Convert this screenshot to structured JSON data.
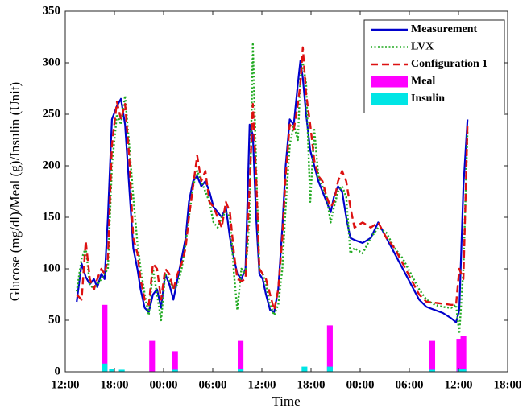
{
  "chart_data": {
    "type": "line",
    "xlabel": "Time",
    "ylabel": "Glucose (mg/dl)/Meal (g)/Insulin (Unit)",
    "xlim": [
      0,
      54
    ],
    "xticks": [
      {
        "value": 0,
        "label": "12:00"
      },
      {
        "value": 6,
        "label": "18:00"
      },
      {
        "value": 12,
        "label": "00:00"
      },
      {
        "value": 18,
        "label": "06:00"
      },
      {
        "value": 24,
        "label": "12:00"
      },
      {
        "value": 30,
        "label": "18:00"
      },
      {
        "value": 36,
        "label": "00:00"
      },
      {
        "value": 42,
        "label": "06:00"
      },
      {
        "value": 48,
        "label": "12:00"
      },
      {
        "value": 54,
        "label": "18:00"
      }
    ],
    "ylim": [
      0,
      350
    ],
    "yticks": [
      0,
      50,
      100,
      150,
      200,
      250,
      300,
      350
    ],
    "legend": "upper right",
    "x": [
      1.4,
      2.0,
      2.5,
      3.0,
      3.5,
      3.9,
      4.4,
      4.8,
      5.2,
      5.7,
      6.3,
      6.8,
      7.3,
      7.8,
      8.3,
      8.8,
      9.2,
      9.7,
      10.2,
      10.7,
      11.2,
      11.7,
      12.2,
      12.7,
      13.2,
      13.7,
      14.2,
      14.7,
      15.1,
      15.6,
      16.1,
      16.6,
      17.1,
      17.6,
      18.1,
      18.6,
      19.1,
      19.6,
      20.1,
      20.6,
      21.0,
      21.5,
      22.0,
      22.5,
      22.9,
      23.3,
      23.7,
      24.1,
      24.5,
      25.0,
      25.5,
      26.0,
      26.5,
      26.9,
      27.4,
      27.9,
      28.4,
      28.7,
      29.0,
      29.4,
      29.9,
      30.4,
      30.9,
      31.4,
      31.9,
      32.4,
      32.8,
      33.3,
      33.8,
      34.3,
      34.8,
      35.3,
      36.3,
      37.3,
      38.2,
      39.2,
      40.2,
      41.2,
      42.2,
      43.2,
      44.1,
      45.1,
      46.1,
      47.1,
      47.7,
      48.1,
      48.6,
      49.1
    ],
    "series": [
      {
        "name": "Measurement",
        "kind": "line",
        "style": "solid",
        "color": "#0000cc",
        "values": [
          68,
          105,
          92,
          85,
          90,
          82,
          95,
          90,
          150,
          245,
          258,
          265,
          240,
          180,
          120,
          100,
          80,
          62,
          58,
          75,
          80,
          62,
          95,
          85,
          70,
          90,
          110,
          130,
          165,
          185,
          190,
          180,
          185,
          175,
          160,
          155,
          150,
          160,
          130,
          110,
          95,
          90,
          100,
          240,
          230,
          150,
          95,
          90,
          75,
          60,
          58,
          80,
          140,
          200,
          245,
          240,
          280,
          302,
          285,
          250,
          215,
          200,
          185,
          175,
          165,
          155,
          170,
          180,
          175,
          150,
          130,
          128,
          125,
          130,
          145,
          130,
          115,
          100,
          85,
          70,
          63,
          60,
          57,
          52,
          48,
          60,
          180,
          245
        ]
      },
      {
        "name": "LVX",
        "kind": "line",
        "style": "dotted",
        "color": "#22aa22",
        "values": [
          78,
          110,
          120,
          85,
          80,
          85,
          90,
          95,
          100,
          200,
          250,
          240,
          268,
          220,
          170,
          125,
          100,
          75,
          55,
          100,
          75,
          50,
          95,
          90,
          80,
          85,
          100,
          125,
          150,
          180,
          195,
          185,
          175,
          165,
          145,
          140,
          150,
          155,
          150,
          95,
          60,
          100,
          95,
          150,
          318,
          200,
          100,
          95,
          85,
          65,
          55,
          65,
          100,
          160,
          220,
          240,
          225,
          285,
          300,
          280,
          165,
          235,
          190,
          180,
          170,
          145,
          160,
          175,
          180,
          170,
          115,
          120,
          115,
          130,
          140,
          135,
          120,
          110,
          95,
          80,
          70,
          65,
          63,
          62,
          65,
          37,
          100,
          235
        ]
      },
      {
        "name": "Configuration 1",
        "kind": "line",
        "style": "dashed",
        "color": "#dd1111",
        "values": [
          75,
          70,
          127,
          90,
          80,
          90,
          100,
          95,
          110,
          220,
          262,
          245,
          260,
          210,
          130,
          115,
          90,
          70,
          65,
          105,
          100,
          70,
          100,
          95,
          80,
          95,
          105,
          120,
          150,
          180,
          210,
          185,
          195,
          165,
          160,
          150,
          140,
          165,
          155,
          115,
          90,
          88,
          90,
          180,
          260,
          190,
          100,
          95,
          90,
          75,
          60,
          80,
          130,
          190,
          240,
          235,
          260,
          280,
          315,
          270,
          240,
          205,
          190,
          185,
          170,
          160,
          165,
          185,
          195,
          185,
          160,
          140,
          145,
          140,
          145,
          130,
          120,
          105,
          90,
          75,
          68,
          67,
          66,
          65,
          65,
          100,
          90,
          240
        ]
      },
      {
        "name": "Meal",
        "kind": "bar",
        "color": "#ff00ff",
        "x": [
          4.8,
          10.6,
          13.4,
          21.4,
          32.3,
          44.8,
          48.1,
          48.6
        ],
        "values": [
          65,
          30,
          20,
          30,
          45,
          30,
          32,
          35
        ]
      },
      {
        "name": "Insulin",
        "kind": "bar",
        "color": "#00e5e5",
        "x": [
          4.8,
          5.7,
          6.9,
          13.4,
          21.4,
          29.2,
          32.3,
          44.8,
          48.2,
          48.6
        ],
        "values": [
          8,
          3,
          2,
          2,
          3,
          5,
          5,
          2,
          3,
          3
        ]
      }
    ]
  }
}
